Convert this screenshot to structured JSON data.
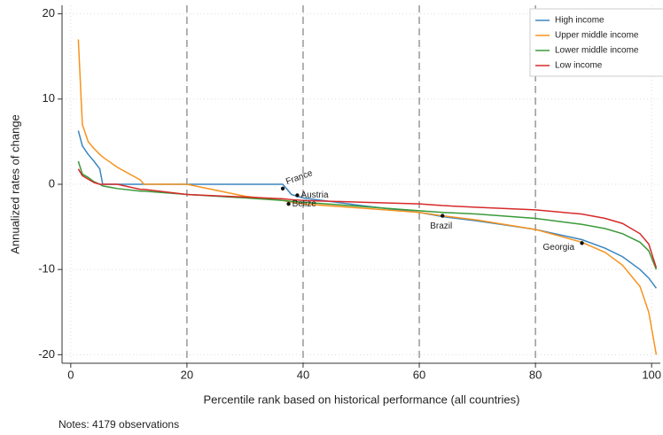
{
  "chart_data": {
    "type": "line",
    "x_label": "Percentile rank based on historical performance (all countries)",
    "y_label": "Annualized rates of change",
    "note": "Notes: 4179 observations",
    "x": [
      1.3,
      2,
      3,
      4,
      5,
      5.5,
      8,
      12,
      12.6,
      20,
      30,
      36.5,
      38,
      40,
      50,
      60,
      64,
      70,
      80,
      88,
      92,
      95,
      98,
      99.5,
      100.8
    ],
    "series": [
      {
        "name": "High income",
        "color": "#3b86c0",
        "values": [
          6.3,
          4.5,
          3.5,
          2.7,
          1.8,
          0,
          0,
          0,
          0,
          0,
          0,
          0,
          -1.2,
          -1.6,
          -2.5,
          -3.3,
          -3.8,
          -4.3,
          -5.3,
          -6.5,
          -7.5,
          -8.5,
          -10,
          -11,
          -12.2
        ]
      },
      {
        "name": "Upper middle income",
        "color": "#f7931e",
        "values": [
          17,
          7,
          5,
          4.2,
          3.5,
          3.2,
          2,
          0.5,
          0,
          0,
          -1.4,
          -1.9,
          -2.1,
          -2.3,
          -2.8,
          -3.3,
          -3.7,
          -4.2,
          -5.3,
          -6.8,
          -8,
          -9.5,
          -12,
          -15,
          -20
        ]
      },
      {
        "name": "Lower middle income",
        "color": "#3a9a3a",
        "values": [
          2.7,
          1.2,
          0.8,
          0.3,
          0,
          -0.2,
          -0.5,
          -0.8,
          -0.8,
          -1.2,
          -1.6,
          -1.9,
          -2,
          -2.1,
          -2.6,
          -3.1,
          -3.3,
          -3.5,
          -4,
          -4.7,
          -5.2,
          -5.8,
          -6.8,
          -7.8,
          -10
        ]
      },
      {
        "name": "Low income",
        "color": "#d62a2a",
        "values": [
          1.8,
          1,
          0.6,
          0.2,
          0,
          0,
          0,
          -0.6,
          -0.6,
          -1.2,
          -1.5,
          -1.7,
          -1.8,
          -1.9,
          -2.1,
          -2.3,
          -2.5,
          -2.7,
          -3,
          -3.5,
          -4,
          -4.6,
          -5.8,
          -7,
          -9.8
        ]
      }
    ],
    "annotations": [
      {
        "label": "France",
        "x": 36.5,
        "y": -0.5
      },
      {
        "label": "Austria",
        "x": 39,
        "y": -1.3
      },
      {
        "label": "Belize",
        "x": 37.5,
        "y": -2.3
      },
      {
        "label": "Brazil",
        "x": 64,
        "y": -3.7
      },
      {
        "label": "Georgia",
        "x": 88,
        "y": -6.9
      }
    ],
    "reference_lines": [
      20,
      40,
      60,
      80
    ],
    "xlim": [
      -1.5,
      101.5
    ],
    "ylim": [
      -21,
      21
    ],
    "xticks": [
      0,
      20,
      40,
      60,
      80,
      100
    ],
    "yticks": [
      -20,
      -10,
      0,
      10,
      20
    ],
    "grid": true,
    "legend": "top-right"
  }
}
